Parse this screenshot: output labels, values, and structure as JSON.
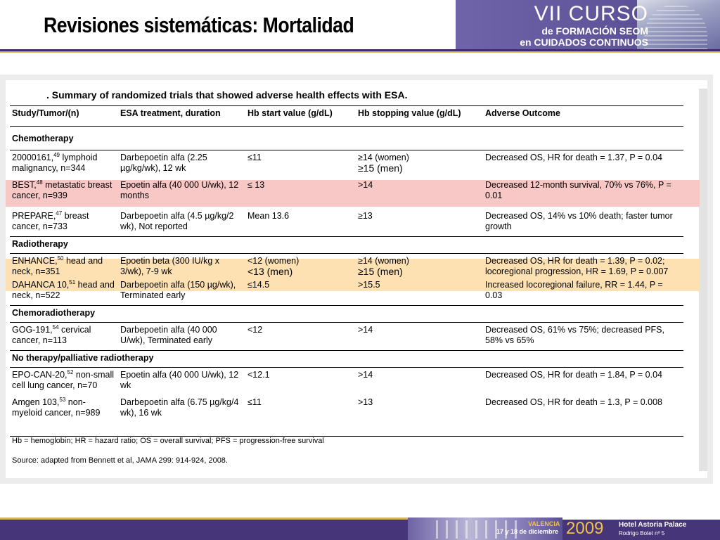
{
  "slide": {
    "title": "Revisiones sistemáticas: Mortalidad"
  },
  "banner": {
    "line1": "VII CURSO",
    "line2": "de FORMACIÓN SEOM",
    "line3": "en CUIDADOS CONTINUOS"
  },
  "table": {
    "caption": ". Summary of randomized trials that showed adverse health effects with ESA.",
    "headers": [
      "Study/Tumor/(n)",
      "ESA treatment, duration",
      "Hb start value (g/dL)",
      "Hb stopping value (g/dL)",
      "Adverse Outcome"
    ],
    "sections": {
      "chemotherapy": "Chemotherapy",
      "radiotherapy": "Radiotherapy",
      "chemoradiotherapy": "Chemoradiotherapy",
      "palliative": "No therapy/palliative radiotherapy"
    },
    "rows": [
      {
        "study": "20000161,",
        "ref": "49",
        "study_rest": " lymphoid malignancy, n=344",
        "treatment": "Darbepoetin alfa (2.25 µg/kg/wk), 12 wk",
        "start": "≤11",
        "stop_a": "≥14 (women)",
        "stop_b": "≥15 (men)",
        "outcome": "Decreased OS, HR for death = 1.37, P = 0.04"
      },
      {
        "study": "BEST,",
        "ref": "48",
        "study_rest": " metastatic breast cancer, n=939",
        "treatment": "Epoetin alfa (40 000 U/wk), 12 months",
        "start": "≤ 13",
        "stop": ">14",
        "outcome": "Decreased 12-month survival, 70% vs 76%, P = 0.01"
      },
      {
        "study": "PREPARE,",
        "ref": "47",
        "study_rest": " breast cancer, n=733",
        "treatment": "Darbepoetin alfa (4.5 µg/kg/2 wk), Not reported",
        "start": "Mean 13.6",
        "stop": "≥13",
        "outcome": "Decreased OS, 14% vs 10% death; faster tumor growth"
      },
      {
        "study": "ENHANCE,",
        "ref": "50",
        "study_rest": " head and neck, n=351",
        "treatment": "Epoetin beta (300 IU/kg x 3/wk), 7-9 wk",
        "start_a": "<12 (women)",
        "start_b": "<13 (men)",
        "stop_a": "≥14 (women)",
        "stop_b": "≥15 (men)",
        "outcome": "Decreased OS, HR for death = 1.39, P = 0.02; locoregional progression, HR = 1.69, P = 0.007"
      },
      {
        "study": "DAHANCA 10,",
        "ref": "51",
        "study_rest": " head and neck, n=522",
        "treatment": "Darbepoetin alfa (150 µg/wk), Terminated early",
        "start": "≤14.5",
        "stop": ">15.5",
        "outcome": "Increased locoregional failure, RR = 1.44, P = 0.03"
      },
      {
        "study": "GOG-191,",
        "ref": "54",
        "study_rest": " cervical cancer, n=113",
        "treatment": "Darbepoetin alfa (40 000 U/wk), Terminated early",
        "start": "<12",
        "stop": ">14",
        "outcome": "Decreased OS, 61% vs 75%; decreased PFS, 58% vs 65%"
      },
      {
        "study": "EPO-CAN-20,",
        "ref": "52",
        "study_rest": " non-small cell lung cancer, n=70",
        "treatment": "Epoetin alfa (40 000 U/wk), 12 wk",
        "start": "<12.1",
        "stop": ">14",
        "outcome": "Decreased OS, HR for death = 1.84, P = 0.04"
      },
      {
        "study": "Amgen 103,",
        "ref": "53",
        "study_rest": " non-myeloid cancer, n=989",
        "treatment": "Darbepoetin alfa (6.75 µg/kg/4 wk), 16 wk",
        "start": "≤11",
        "stop": ">13",
        "outcome": "Decreased OS, HR for death = 1.3, P = 0.008"
      }
    ],
    "footnote": "Hb = hemoglobin; HR = hazard ratio; OS = overall survival; PFS = progression-free survival",
    "source": "Source: adapted from Bennett et al, JAMA 299: 914-924, 2008."
  },
  "footer": {
    "city": "VALENCIA",
    "dates": "17 y 18 de diciembre",
    "year": "2009",
    "hotel": "Hotel Astoria Palace",
    "address": "Rodrigo Botet nº 5"
  },
  "colors": {
    "brand_purple": "#463579",
    "accent_gold": "#d6b65a",
    "highlight_pink": "#f8c8c6",
    "highlight_orange": "#fde1b2"
  }
}
